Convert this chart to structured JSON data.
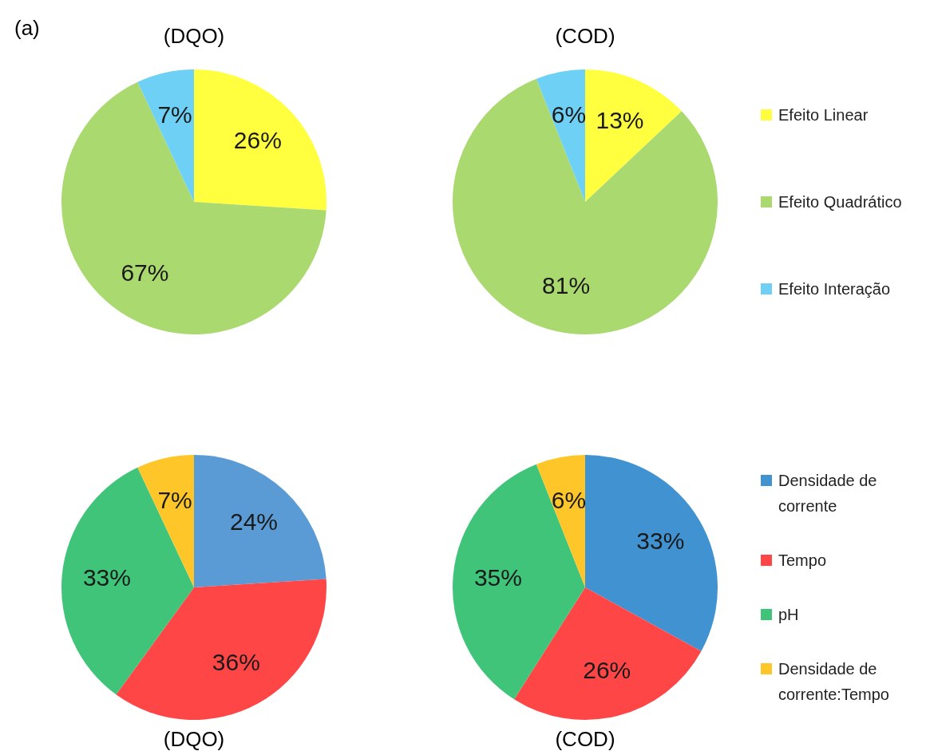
{
  "chart_data": [
    {
      "type": "pie",
      "title": "(DQO)",
      "annotations": [
        "(a)"
      ],
      "categories": [
        null,
        null,
        null
      ],
      "values": [
        26,
        67,
        7
      ],
      "value_labels": [
        "26%",
        "67%",
        "7%"
      ],
      "colors": [
        "#ffff40",
        "#a9d96f",
        "#6fd0f5"
      ]
    },
    {
      "type": "pie",
      "title": "(COD)",
      "categories": [
        "Efeito Linear",
        "Efeito Quadrático",
        "Efeito Interação"
      ],
      "values": [
        13,
        81,
        6
      ],
      "value_labels": [
        "13%",
        "81%",
        "6%"
      ],
      "colors": [
        "#ffff40",
        "#a9d96f",
        "#6fd0f5"
      ],
      "legend": "right"
    },
    {
      "type": "pie",
      "title": "(DQO)",
      "categories": [
        null,
        null,
        null,
        null
      ],
      "values": [
        24,
        36,
        33,
        7
      ],
      "value_labels": [
        "24%",
        "36%",
        "33%",
        "7%"
      ],
      "colors": [
        "#5b9bd5",
        "#ff4646",
        "#40c47a",
        "#ffc629"
      ]
    },
    {
      "type": "pie",
      "title": "(COD)",
      "categories": [
        "Densidade de corrente",
        "Tempo",
        "pH",
        "Densidade de corrente:Tempo"
      ],
      "values": [
        33,
        26,
        35,
        6
      ],
      "value_labels": [
        "33%",
        "26%",
        "35%",
        "6%"
      ],
      "colors": [
        "#4192d0",
        "#ff4646",
        "#40c47a",
        "#ffc629"
      ],
      "legend": "right"
    }
  ]
}
